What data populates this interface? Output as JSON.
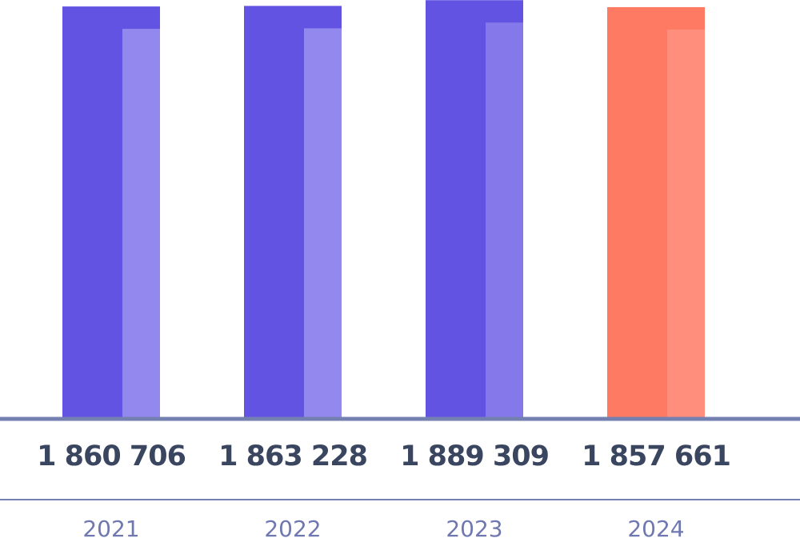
{
  "chart_data": {
    "type": "bar",
    "categories": [
      "2021",
      "2022",
      "2023",
      "2024"
    ],
    "values": [
      1860706,
      1863228,
      1889309,
      1857661
    ],
    "value_labels": [
      "1 860 706",
      "1 863 228",
      "1 889 309",
      "1 857 661"
    ],
    "colors": [
      "#6353e3",
      "#6353e3",
      "#6353e3",
      "#ff7a62"
    ],
    "highlight_colors": [
      "#9288ee",
      "#9288ee",
      "#8478ea",
      "#ff8f7c"
    ],
    "ylim": [
      0,
      1890000
    ]
  }
}
